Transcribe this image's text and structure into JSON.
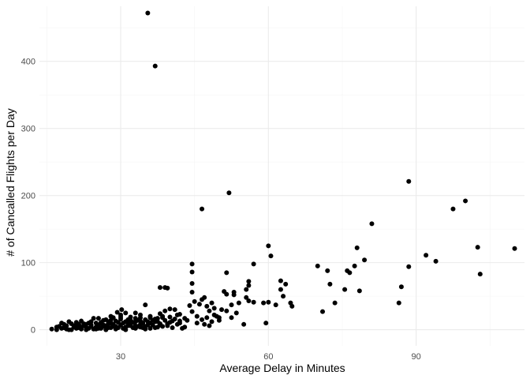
{
  "chart_data": {
    "type": "scatter",
    "title": "",
    "xlabel": "Average Delay in Minutes",
    "ylabel": "# of Cancalled Flights per Day",
    "xlim": [
      13.5,
      112
    ],
    "ylim": [
      -24,
      482
    ],
    "x_ticks": [
      30,
      60,
      90
    ],
    "x_minor_ticks": [
      15,
      45,
      75,
      105
    ],
    "y_ticks": [
      0,
      100,
      200,
      300,
      400
    ],
    "y_minor_ticks": [
      50,
      150,
      250,
      350,
      450
    ],
    "grid": true,
    "point_color": "#000000",
    "background": "#ffffff",
    "points": [
      [
        35.5,
        472
      ],
      [
        37,
        393
      ],
      [
        88.5,
        221
      ],
      [
        52,
        204
      ],
      [
        46.5,
        180
      ],
      [
        97.5,
        180
      ],
      [
        100,
        192
      ],
      [
        81,
        158
      ],
      [
        110,
        121
      ],
      [
        102.5,
        123
      ],
      [
        103,
        83
      ],
      [
        92,
        111
      ],
      [
        94,
        102
      ],
      [
        79.5,
        104
      ],
      [
        78,
        122
      ],
      [
        88.5,
        94
      ],
      [
        87,
        64
      ],
      [
        86.5,
        40
      ],
      [
        78.5,
        58
      ],
      [
        60,
        125
      ],
      [
        60.5,
        110
      ],
      [
        57,
        98
      ],
      [
        44.5,
        98
      ],
      [
        44.5,
        86
      ],
      [
        44.5,
        69
      ],
      [
        44.5,
        56
      ],
      [
        51.5,
        85
      ],
      [
        62.5,
        73
      ],
      [
        63.5,
        68
      ],
      [
        62.5,
        60
      ],
      [
        63,
        50
      ],
      [
        64.5,
        40
      ],
      [
        64.8,
        35
      ],
      [
        61.5,
        37
      ],
      [
        56,
        72
      ],
      [
        56,
        66
      ],
      [
        55.5,
        60
      ],
      [
        55.5,
        48
      ],
      [
        56,
        43
      ],
      [
        57,
        41
      ],
      [
        59,
        40
      ],
      [
        60,
        41
      ],
      [
        59.5,
        10
      ],
      [
        55,
        8
      ],
      [
        70,
        95
      ],
      [
        71,
        27
      ],
      [
        72,
        88
      ],
      [
        72.5,
        68
      ],
      [
        73.5,
        40
      ],
      [
        75.5,
        60
      ],
      [
        76,
        88
      ],
      [
        76.5,
        85
      ],
      [
        77.5,
        95
      ],
      [
        47,
        48
      ],
      [
        46.5,
        45
      ],
      [
        46,
        38
      ],
      [
        47.5,
        35
      ],
      [
        48,
        28
      ],
      [
        49,
        22
      ],
      [
        50,
        18
      ],
      [
        51,
        57
      ],
      [
        51.5,
        53
      ],
      [
        52.5,
        37
      ],
      [
        53,
        52
      ],
      [
        53,
        56
      ],
      [
        54,
        40
      ],
      [
        53.5,
        25
      ],
      [
        52.5,
        18
      ],
      [
        51.5,
        28
      ],
      [
        49.5,
        20
      ],
      [
        48.5,
        12
      ],
      [
        47.5,
        18
      ],
      [
        46.5,
        15
      ],
      [
        45.5,
        20
      ],
      [
        44.5,
        27
      ],
      [
        44,
        36
      ],
      [
        43.5,
        14
      ],
      [
        43,
        4
      ],
      [
        42.5,
        2
      ],
      [
        42,
        10
      ],
      [
        41.5,
        22
      ],
      [
        40,
        31
      ],
      [
        39.5,
        62
      ],
      [
        39,
        63
      ],
      [
        38,
        63
      ],
      [
        39,
        28
      ],
      [
        38.5,
        20
      ],
      [
        37.5,
        12
      ],
      [
        35,
        37
      ],
      [
        34,
        18
      ],
      [
        33,
        12
      ],
      [
        31.5,
        15
      ],
      [
        30.2,
        30
      ],
      [
        29.3,
        26
      ],
      [
        28.5,
        18
      ],
      [
        27.5,
        12
      ],
      [
        26.5,
        14
      ],
      [
        25.5,
        17
      ],
      [
        24.5,
        17
      ],
      [
        23.5,
        10
      ],
      [
        22.5,
        6
      ],
      [
        21.5,
        3
      ],
      [
        20.5,
        4
      ],
      [
        19.5,
        12
      ],
      [
        18.5,
        8
      ],
      [
        17.5,
        5
      ],
      [
        16,
        1
      ],
      [
        17,
        0
      ],
      [
        18,
        2
      ],
      [
        19,
        1
      ],
      [
        20,
        0
      ],
      [
        21,
        2
      ],
      [
        22,
        1
      ],
      [
        23,
        3
      ],
      [
        24,
        5
      ],
      [
        25,
        4
      ],
      [
        26,
        2
      ],
      [
        27,
        6
      ],
      [
        28,
        3
      ],
      [
        29,
        5
      ],
      [
        30,
        7
      ],
      [
        31,
        4
      ],
      [
        32,
        9
      ],
      [
        33,
        6
      ],
      [
        34,
        8
      ],
      [
        35,
        5
      ],
      [
        36,
        10
      ],
      [
        37,
        12
      ],
      [
        38,
        9
      ],
      [
        39,
        14
      ],
      [
        40,
        11
      ],
      [
        41,
        16
      ],
      [
        42,
        13
      ],
      [
        17,
        4
      ],
      [
        18.5,
        3
      ],
      [
        19.5,
        0
      ],
      [
        20.5,
        6
      ],
      [
        21.5,
        8
      ],
      [
        22.5,
        9
      ],
      [
        23.5,
        2
      ],
      [
        24.5,
        1
      ],
      [
        25.5,
        7
      ],
      [
        26.5,
        5
      ],
      [
        27.5,
        3
      ],
      [
        28.5,
        8
      ],
      [
        29.5,
        11
      ],
      [
        30.5,
        2
      ],
      [
        31.5,
        9
      ],
      [
        32.5,
        11
      ],
      [
        33.5,
        14
      ],
      [
        34.5,
        10
      ],
      [
        35.5,
        12
      ],
      [
        36.5,
        7
      ],
      [
        37.5,
        4
      ],
      [
        38.5,
        18
      ],
      [
        39.5,
        6
      ],
      [
        40.5,
        3
      ],
      [
        41.5,
        8
      ],
      [
        20,
        9
      ],
      [
        21,
        11
      ],
      [
        22,
        13
      ],
      [
        23,
        8
      ],
      [
        24,
        12
      ],
      [
        25,
        10
      ],
      [
        26,
        9
      ],
      [
        27,
        15
      ],
      [
        28,
        10
      ],
      [
        29,
        13
      ],
      [
        30,
        16
      ],
      [
        31,
        12
      ],
      [
        32,
        14
      ],
      [
        33,
        17
      ],
      [
        34,
        13
      ],
      [
        35,
        15
      ],
      [
        36,
        18
      ],
      [
        37,
        16
      ],
      [
        23,
        0
      ],
      [
        25,
        1
      ],
      [
        27,
        0
      ],
      [
        29,
        1
      ],
      [
        31,
        0
      ],
      [
        33,
        2
      ],
      [
        35,
        1
      ],
      [
        37,
        3
      ],
      [
        28,
        20
      ],
      [
        30,
        22
      ],
      [
        32,
        19
      ],
      [
        34,
        22
      ],
      [
        36,
        20
      ],
      [
        38,
        24
      ],
      [
        31,
        25
      ],
      [
        33,
        25
      ],
      [
        25.5,
        2
      ],
      [
        26.5,
        7
      ],
      [
        27.5,
        9
      ],
      [
        28.5,
        5
      ],
      [
        29.5,
        3
      ],
      [
        30.5,
        10
      ],
      [
        31.5,
        6
      ],
      [
        32.5,
        3
      ],
      [
        33.5,
        5
      ],
      [
        34.5,
        3
      ],
      [
        35.5,
        7
      ],
      [
        36.5,
        14
      ],
      [
        37.5,
        17
      ],
      [
        38.5,
        5
      ],
      [
        39.5,
        9
      ],
      [
        40.5,
        13
      ],
      [
        19,
        6
      ],
      [
        18,
        10
      ],
      [
        21,
        5
      ],
      [
        22,
        4
      ],
      [
        24,
        7
      ],
      [
        26,
        11
      ],
      [
        28,
        14
      ],
      [
        30,
        19
      ],
      [
        32,
        6
      ],
      [
        34,
        4
      ],
      [
        36,
        2
      ],
      [
        38,
        7
      ],
      [
        40,
        19
      ],
      [
        42,
        23
      ],
      [
        43,
        17
      ],
      [
        41,
        30
      ],
      [
        45.5,
        10
      ],
      [
        47,
        8
      ],
      [
        48,
        6
      ],
      [
        50,
        14
      ],
      [
        49,
        32
      ],
      [
        50.5,
        30
      ],
      [
        48.5,
        40
      ],
      [
        45,
        42
      ]
    ]
  }
}
